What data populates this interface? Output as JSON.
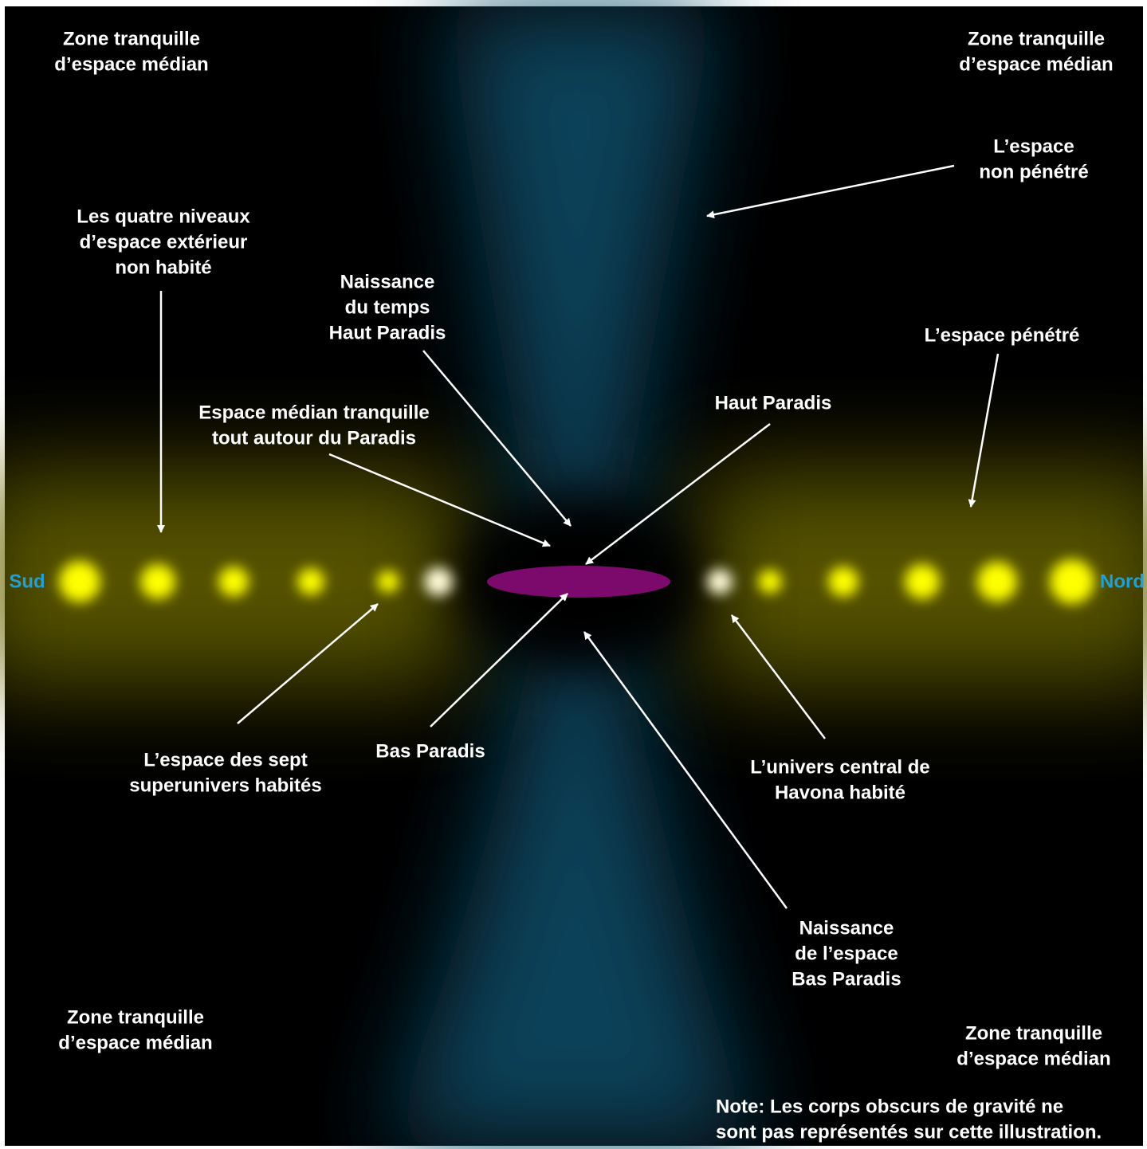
{
  "labels": {
    "corner_top_left": [
      "Zone tranquille",
      "d’espace médian"
    ],
    "corner_top_right": [
      "Zone tranquille",
      "d’espace médian"
    ],
    "corner_bottom_left": [
      "Zone tranquille",
      "d’espace médian"
    ],
    "corner_bottom_right": [
      "Zone tranquille",
      "d’espace médian"
    ],
    "unpervaded_space": [
      "L’espace",
      "non pénétré"
    ],
    "outer_space_levels": [
      "Les quatre niveaux",
      "d’espace extérieur",
      "non habité"
    ],
    "time_origin": [
      "Naissance",
      "du temps",
      "Haut Paradis"
    ],
    "pervaded_space": [
      "L’espace pénétré"
    ],
    "midspace": [
      "Espace médian tranquille",
      "tout autour du Paradis"
    ],
    "upper_paradise": [
      "Haut Paradis"
    ],
    "superuniverses": [
      "L’espace des sept",
      "superunivers habités"
    ],
    "lower_paradise": [
      "Bas Paradis"
    ],
    "havona": [
      "L’univers central de",
      "Havona habité"
    ],
    "space_origin": [
      "Naissance",
      "de l’espace",
      "Bas Paradis"
    ],
    "note": [
      "Note: Les corps obscurs de gravité ne",
      "sont pas représentés sur cette illustration."
    ]
  },
  "directions": {
    "south": "Sud",
    "north": "Nord"
  }
}
